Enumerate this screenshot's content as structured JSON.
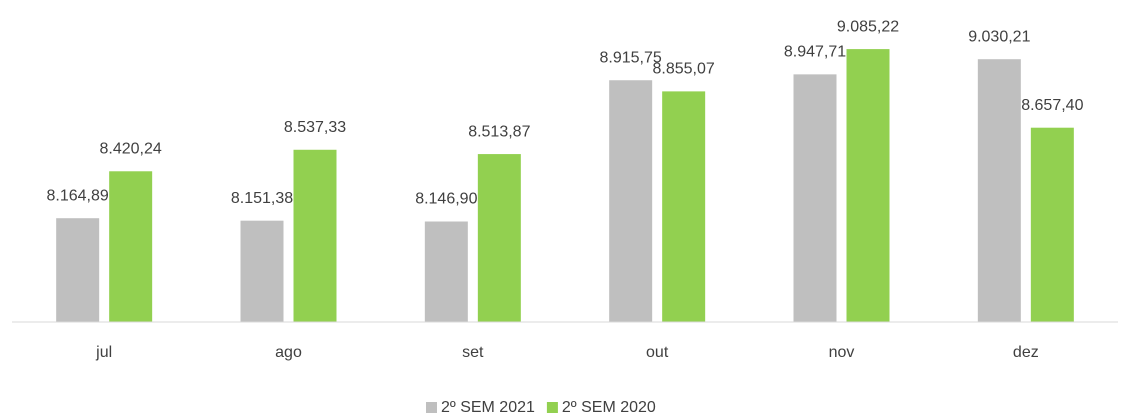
{
  "chart_data": {
    "type": "bar",
    "categories": [
      "jul",
      "ago",
      "set",
      "out",
      "nov",
      "dez"
    ],
    "series": [
      {
        "name": "2º SEM 2021",
        "color": "#bfbfbf",
        "values": [
          8164.89,
          8151.38,
          8146.9,
          8915.75,
          8947.71,
          9030.21
        ],
        "value_labels": [
          "8.164,89",
          "8.151,38",
          "8.146,90",
          "8.915,75",
          "8.947,71",
          "9.030,21"
        ]
      },
      {
        "name": "2º SEM 2020",
        "color": "#92d050",
        "values": [
          8420.24,
          8537.33,
          8513.87,
          8855.07,
          9085.22,
          8657.4
        ],
        "value_labels": [
          "8.420,24",
          "8.537,33",
          "8.513,87",
          "8.855,07",
          "9.085,22",
          "8.657,40"
        ]
      }
    ],
    "ylim": [
      7600,
      9200
    ],
    "legend": "bottom"
  }
}
